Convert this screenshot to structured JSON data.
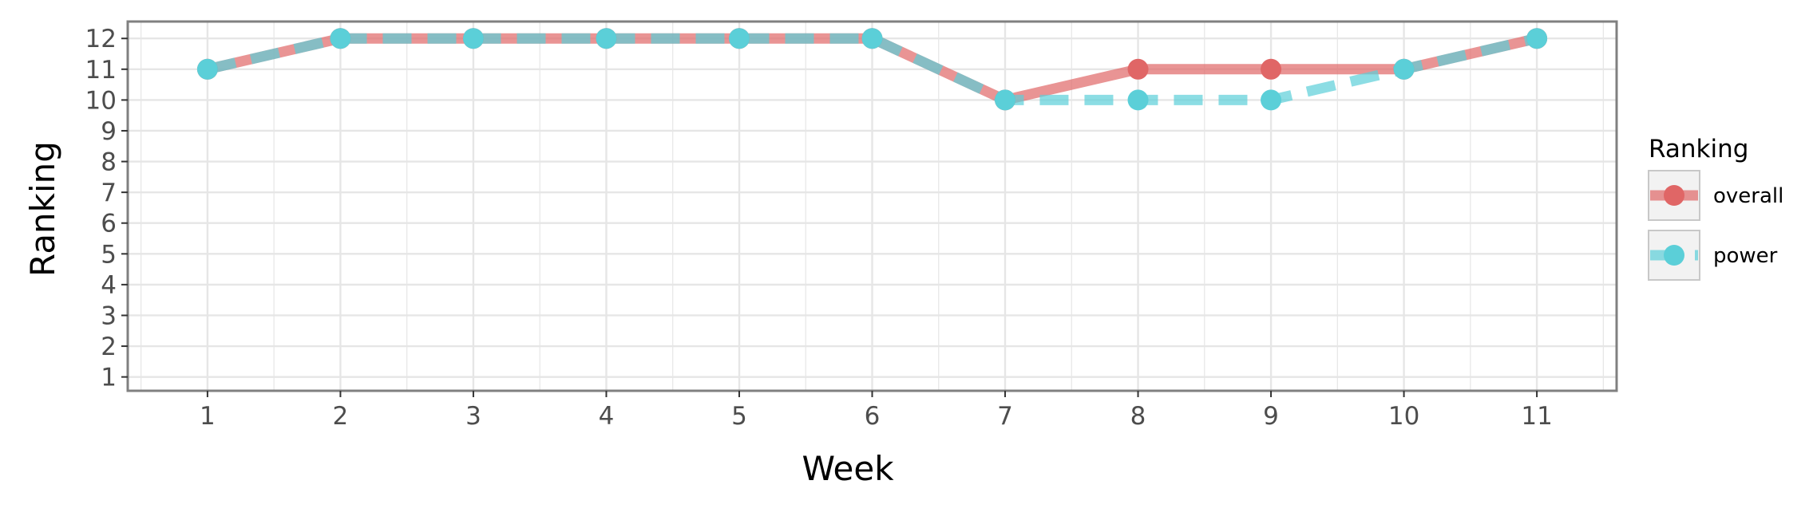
{
  "chart_data": {
    "type": "line",
    "title": "",
    "xlabel": "Week",
    "ylabel": "Ranking",
    "x": [
      1,
      2,
      3,
      4,
      5,
      6,
      7,
      8,
      9,
      10,
      11
    ],
    "xlim": [
      0.4,
      11.6
    ],
    "ylim": [
      12.55,
      0.55
    ],
    "y_reversed": true,
    "x_ticks": [
      1,
      2,
      3,
      4,
      5,
      6,
      7,
      8,
      9,
      10,
      11
    ],
    "y_ticks": [
      1,
      2,
      3,
      4,
      5,
      6,
      7,
      8,
      9,
      10,
      11,
      12
    ],
    "grid": true,
    "legend": {
      "title": "Ranking",
      "position": "right"
    },
    "series": [
      {
        "name": "overall",
        "color": "#e06666",
        "linestyle": "solid",
        "values": [
          11,
          12,
          12,
          12,
          12,
          12,
          10,
          11,
          11,
          11,
          12
        ]
      },
      {
        "name": "power",
        "color": "#5bcfd8",
        "linestyle": "dashed",
        "values": [
          11,
          12,
          12,
          12,
          12,
          12,
          10,
          10,
          10,
          11,
          12
        ]
      }
    ]
  }
}
